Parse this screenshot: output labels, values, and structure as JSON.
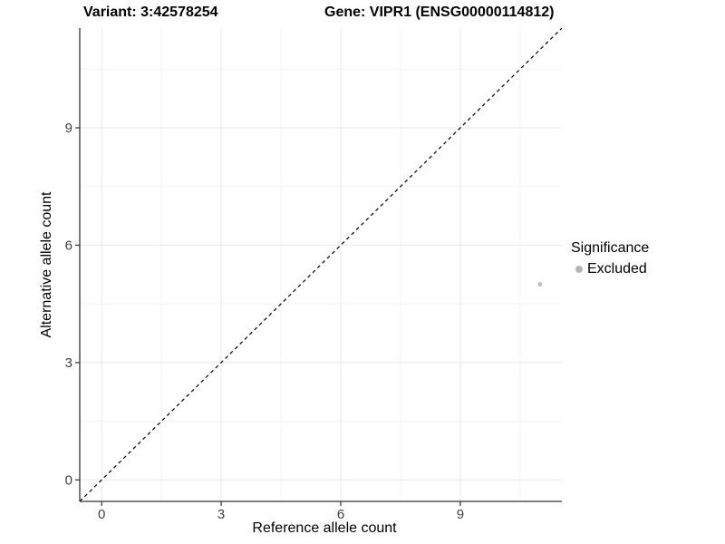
{
  "chart_data": {
    "type": "scatter",
    "title_variant": "Variant: 3:42578254",
    "title_gene": "Gene: VIPR1 (ENSG00000114812)",
    "xlabel": "Reference allele count",
    "ylabel": "Alternative allele count",
    "xlim": [
      -0.55,
      11.55
    ],
    "ylim": [
      -0.55,
      11.55
    ],
    "x_ticks": [
      0,
      3,
      6,
      9
    ],
    "y_ticks": [
      0,
      3,
      6,
      9
    ],
    "x_minor_ticks": [
      1.5,
      4.5,
      7.5,
      10.5
    ],
    "y_minor_ticks": [
      1.5,
      4.5,
      7.5,
      10.5
    ],
    "grid": true,
    "reference_line": {
      "slope": 1,
      "intercept": 0,
      "style": "dashed",
      "color": "#000000"
    },
    "series": [
      {
        "name": "Excluded",
        "color": "#bdbdbd",
        "point_radius": 2.5,
        "points": [
          [
            11,
            5
          ]
        ]
      }
    ],
    "legend": {
      "title": "Significance",
      "position": "right",
      "items": [
        {
          "label": "Excluded",
          "color": "#b5b5b5"
        }
      ]
    },
    "style": {
      "background": "#ffffff",
      "grid_major_color": "#e8e8e8",
      "grid_minor_color": "#f3f3f3",
      "axis_line_color": "#333333",
      "tick_color": "#333333",
      "tick_label_color": "#404040",
      "title_color": "#000000"
    }
  }
}
